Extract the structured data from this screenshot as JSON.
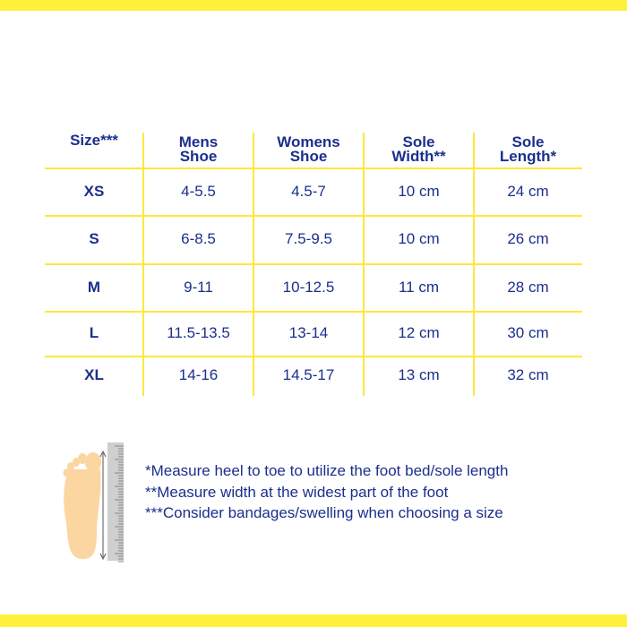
{
  "colors": {
    "accent": "#fff03c",
    "text": "#1b2f8c"
  },
  "table": {
    "headers": [
      [
        "Size***",
        ""
      ],
      [
        "Mens",
        "Shoe"
      ],
      [
        "Womens",
        "Shoe"
      ],
      [
        "Sole",
        "Width**"
      ],
      [
        "Sole",
        "Length*"
      ]
    ],
    "rows": [
      [
        "XS",
        "4-5.5",
        "4.5-7",
        "10 cm",
        "24 cm"
      ],
      [
        "S",
        "6-8.5",
        "7.5-9.5",
        "10 cm",
        "26 cm"
      ],
      [
        "M",
        "9-11",
        "10-12.5",
        "11 cm",
        "28 cm"
      ],
      [
        "L",
        "11.5-13.5",
        "13-14",
        "12 cm",
        "30 cm"
      ],
      [
        "XL",
        "14-16",
        "14.5-17",
        "13 cm",
        "32 cm"
      ]
    ]
  },
  "illustration": "foot-with-ruler-icon",
  "notes": [
    "*Measure heel to toe to utilize the foot bed/sole length",
    "**Measure width at the widest part of the foot",
    "***Consider bandages/swelling when choosing a size"
  ]
}
